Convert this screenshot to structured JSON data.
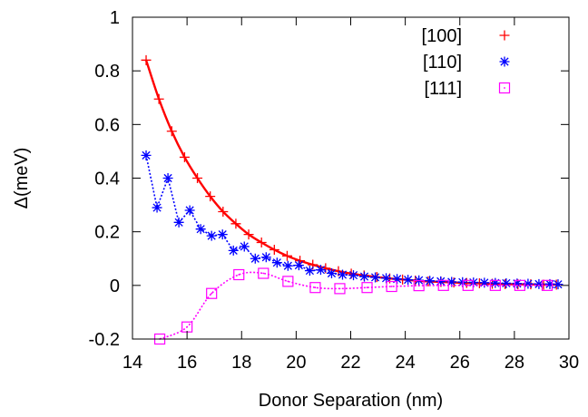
{
  "chart_data": {
    "type": "scatter",
    "xlabel": "Donor Separation (nm)",
    "ylabel": "Δ(meV)",
    "xlim": [
      14,
      30
    ],
    "ylim": [
      -0.2,
      1
    ],
    "xticks": [
      "14",
      "16",
      "18",
      "20",
      "22",
      "24",
      "26",
      "28",
      "30"
    ],
    "yticks": [
      "-0.2",
      "0",
      "0.2",
      "0.4",
      "0.6",
      "0.8",
      "1"
    ],
    "grid": false,
    "legend_position": "top-right",
    "series": [
      {
        "name": "[100]",
        "color": "#ff0000",
        "marker": "plus",
        "line": "solid",
        "x": [
          14.5,
          14.97,
          15.44,
          15.91,
          16.38,
          16.85,
          17.32,
          17.79,
          18.26,
          18.73,
          19.2,
          19.67,
          20.14,
          20.61,
          21.08,
          21.55,
          22.02,
          22.49,
          22.96,
          23.43,
          23.9,
          24.37,
          24.84,
          25.31,
          25.78,
          26.25,
          26.72,
          27.19,
          27.66,
          28.13,
          28.6,
          29.07,
          29.54
        ],
        "y": [
          0.84,
          0.695,
          0.575,
          0.478,
          0.4,
          0.332,
          0.275,
          0.23,
          0.19,
          0.16,
          0.133,
          0.11,
          0.092,
          0.077,
          0.064,
          0.053,
          0.044,
          0.037,
          0.031,
          0.026,
          0.022,
          0.018,
          0.015,
          0.013,
          0.011,
          0.009,
          0.008,
          0.006,
          0.005,
          0.004,
          0.004,
          0.003,
          0.003
        ]
      },
      {
        "name": "[110]",
        "color": "#0000ff",
        "marker": "star",
        "line": "dotted",
        "x": [
          14.5,
          14.9,
          15.3,
          15.7,
          16.1,
          16.5,
          16.9,
          17.3,
          17.7,
          18.1,
          18.5,
          18.9,
          19.3,
          19.7,
          20.1,
          20.5,
          20.9,
          21.3,
          21.7,
          22.1,
          22.5,
          22.9,
          23.3,
          23.7,
          24.1,
          24.5,
          24.9,
          25.3,
          25.7,
          26.1,
          26.5,
          26.9,
          27.3,
          27.7,
          28.1,
          28.5,
          28.9,
          29.3,
          29.6
        ],
        "y": [
          0.485,
          0.29,
          0.4,
          0.235,
          0.28,
          0.21,
          0.185,
          0.19,
          0.13,
          0.145,
          0.1,
          0.105,
          0.085,
          0.073,
          0.075,
          0.055,
          0.058,
          0.045,
          0.04,
          0.038,
          0.033,
          0.03,
          0.027,
          0.024,
          0.021,
          0.019,
          0.017,
          0.015,
          0.013,
          0.012,
          0.011,
          0.01,
          0.009,
          0.008,
          0.007,
          0.006,
          0.005,
          0.005,
          0.004
        ]
      },
      {
        "name": "[111]",
        "color": "#ff00ff",
        "marker": "square",
        "line": "dotted",
        "x": [
          15.0,
          16.0,
          16.9,
          17.9,
          18.8,
          19.7,
          20.7,
          21.6,
          22.6,
          23.5,
          24.5,
          25.4,
          26.3,
          27.3,
          28.2,
          29.2
        ],
        "y": [
          -0.2,
          -0.155,
          -0.03,
          0.04,
          0.045,
          0.015,
          -0.008,
          -0.012,
          -0.008,
          -0.004,
          -0.001,
          0.0,
          0.0,
          0.0,
          0.0,
          0.0
        ]
      }
    ]
  }
}
